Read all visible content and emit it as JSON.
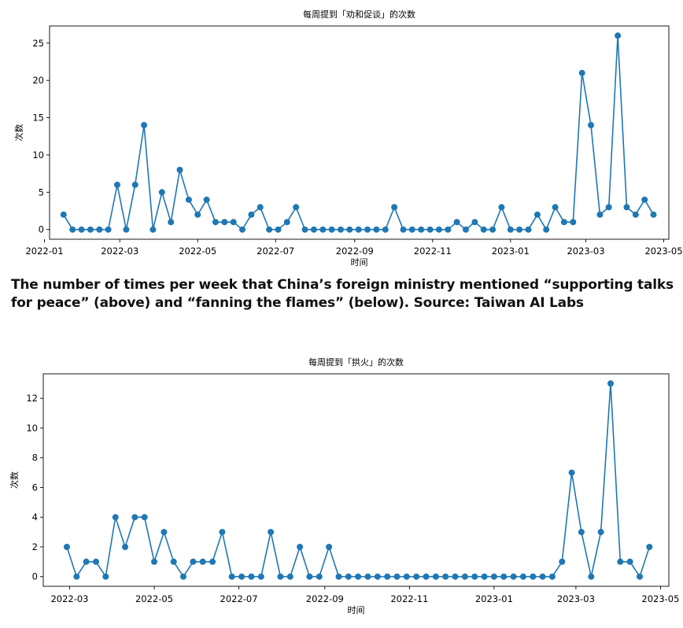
{
  "caption": "The number of times per week that  China’s foreign ministry mentioned “supporting talks for peace” (above) and “fanning the flames” (below). Source: Taiwan AI Labs",
  "colors": {
    "line": "#1f77b4",
    "axis": "#000000",
    "background": "#ffffff"
  },
  "chart_data": [
    {
      "type": "line",
      "title": "每周提到「劝和促谈」的次数",
      "xlabel": "时间",
      "ylabel": "次数",
      "xlim": [
        "2022-01-05",
        "2023-05-05"
      ],
      "ylim": [
        -1.3,
        27.3
      ],
      "x_ticks": [
        "2022-01",
        "2022-03",
        "2022-05",
        "2022-07",
        "2022-09",
        "2022-11",
        "2023-01",
        "2023-03",
        "2023-05"
      ],
      "y_ticks": [
        0,
        5,
        10,
        15,
        20,
        25
      ],
      "grid": false,
      "x_start": "2022-01-16",
      "x_step_days": 7,
      "series": [
        {
          "values": [
            2,
            0,
            0,
            0,
            0,
            0,
            6,
            0,
            6,
            14,
            0,
            5,
            1,
            8,
            4,
            2,
            4,
            1,
            1,
            1,
            0,
            2,
            3,
            0,
            0,
            1,
            3,
            0,
            0,
            0,
            0,
            0,
            0,
            0,
            0,
            0,
            0,
            3,
            0,
            0,
            0,
            0,
            0,
            0,
            1,
            0,
            1,
            0,
            0,
            3,
            0,
            0,
            0,
            2,
            0,
            3,
            1,
            1,
            21,
            14,
            2,
            3,
            26,
            3,
            2,
            4,
            2
          ]
        }
      ]
    },
    {
      "type": "line",
      "title": "每周提到「拱火」的次数",
      "xlabel": "时间",
      "ylabel": "次数",
      "xlim": [
        "2022-02-10",
        "2023-05-07"
      ],
      "ylim": [
        -0.65,
        13.65
      ],
      "x_ticks": [
        "2022-03",
        "2022-05",
        "2022-07",
        "2022-09",
        "2022-11",
        "2023-01",
        "2023-03",
        "2023-05"
      ],
      "y_ticks": [
        0,
        2,
        4,
        6,
        8,
        10,
        12
      ],
      "grid": false,
      "x_start": "2022-02-27",
      "x_step_days": 7,
      "series": [
        {
          "values": [
            2,
            0,
            1,
            1,
            0,
            4,
            2,
            4,
            4,
            1,
            3,
            1,
            0,
            1,
            1,
            1,
            3,
            0,
            0,
            0,
            0,
            3,
            0,
            0,
            2,
            0,
            0,
            2,
            0,
            0,
            0,
            0,
            0,
            0,
            0,
            0,
            0,
            0,
            0,
            0,
            0,
            0,
            0,
            0,
            0,
            0,
            0,
            0,
            0,
            0,
            0,
            1,
            7,
            3,
            0,
            3,
            13,
            1,
            1,
            0,
            2
          ]
        }
      ]
    }
  ]
}
